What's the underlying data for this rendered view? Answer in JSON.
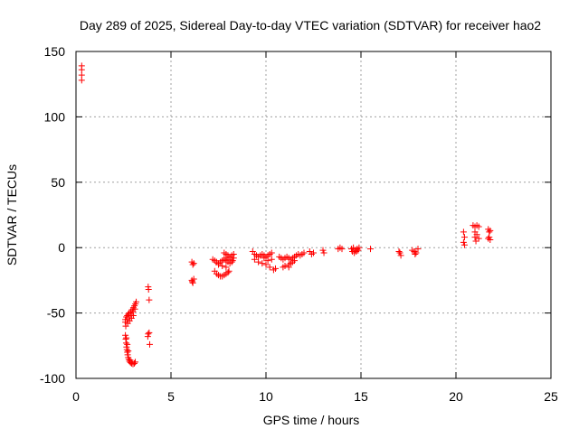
{
  "chart_data": {
    "type": "scatter",
    "title": "Day 289 of 2025, Sidereal Day-to-day VTEC variation (SDTVAR) for receiver hao2",
    "xlabel": "GPS time / hours",
    "ylabel": "SDTVAR / TECUs",
    "xlim": [
      0,
      25
    ],
    "ylim": [
      -100,
      150
    ],
    "xticks": [
      0,
      5,
      10,
      15,
      20,
      25
    ],
    "yticks": [
      -100,
      -50,
      0,
      50,
      100,
      150
    ],
    "xtick_labels": [
      "0",
      "5",
      "10",
      "15",
      "20",
      "25"
    ],
    "ytick_labels": [
      "-100",
      "-50",
      "0",
      "50",
      "100",
      "150"
    ],
    "grid": true,
    "marker": "+",
    "marker_color": "#ff0000",
    "series": [
      {
        "name": "SDTVAR",
        "points": [
          [
            0.3,
            139
          ],
          [
            0.3,
            136
          ],
          [
            0.3,
            132
          ],
          [
            0.3,
            128
          ],
          [
            2.6,
            -67
          ],
          [
            2.62,
            -70
          ],
          [
            2.64,
            -73
          ],
          [
            2.66,
            -76
          ],
          [
            2.68,
            -78
          ],
          [
            2.7,
            -80
          ],
          [
            2.72,
            -82
          ],
          [
            2.75,
            -84
          ],
          [
            2.78,
            -85.5
          ],
          [
            2.82,
            -87
          ],
          [
            2.87,
            -88
          ],
          [
            2.93,
            -88.5
          ],
          [
            3.0,
            -89
          ],
          [
            3.07,
            -88.5
          ],
          [
            3.12,
            -87.5
          ],
          [
            2.65,
            -69
          ],
          [
            2.7,
            -74
          ],
          [
            2.75,
            -79
          ],
          [
            2.85,
            -86
          ],
          [
            2.6,
            -55
          ],
          [
            2.65,
            -53
          ],
          [
            2.7,
            -52
          ],
          [
            2.75,
            -51
          ],
          [
            2.8,
            -50
          ],
          [
            2.88,
            -49
          ],
          [
            2.95,
            -47.5
          ],
          [
            3.02,
            -46
          ],
          [
            3.08,
            -44.5
          ],
          [
            3.13,
            -43
          ],
          [
            3.17,
            -41.5
          ],
          [
            2.6,
            -57
          ],
          [
            2.7,
            -55
          ],
          [
            2.8,
            -53
          ],
          [
            2.9,
            -51
          ],
          [
            3.0,
            -49
          ],
          [
            3.1,
            -47
          ],
          [
            2.62,
            -60
          ],
          [
            2.72,
            -58
          ],
          [
            2.82,
            -56
          ],
          [
            2.92,
            -54
          ],
          [
            3.02,
            -52
          ],
          [
            3.8,
            -30
          ],
          [
            3.82,
            -32
          ],
          [
            3.85,
            -40
          ],
          [
            3.8,
            -66
          ],
          [
            3.85,
            -65
          ],
          [
            3.78,
            -68
          ],
          [
            3.88,
            -74
          ],
          [
            6.1,
            -11
          ],
          [
            6.15,
            -13
          ],
          [
            6.2,
            -12
          ],
          [
            6.1,
            -25
          ],
          [
            6.15,
            -27
          ],
          [
            6.2,
            -24
          ],
          [
            6.12,
            -26
          ],
          [
            7.2,
            -9
          ],
          [
            7.3,
            -10
          ],
          [
            7.4,
            -11
          ],
          [
            7.5,
            -12
          ],
          [
            7.6,
            -11
          ],
          [
            7.7,
            -10
          ],
          [
            7.8,
            -9
          ],
          [
            7.9,
            -10
          ],
          [
            8.0,
            -11
          ],
          [
            8.1,
            -12
          ],
          [
            8.2,
            -11
          ],
          [
            7.3,
            -18
          ],
          [
            7.4,
            -20
          ],
          [
            7.5,
            -21
          ],
          [
            7.6,
            -22
          ],
          [
            7.7,
            -22
          ],
          [
            7.8,
            -21
          ],
          [
            7.9,
            -20
          ],
          [
            8.0,
            -19
          ],
          [
            8.05,
            -18
          ],
          [
            7.8,
            -4
          ],
          [
            7.9,
            -5
          ],
          [
            8.0,
            -6
          ],
          [
            8.1,
            -7
          ],
          [
            8.2,
            -6
          ],
          [
            8.3,
            -5
          ],
          [
            7.9,
            -8
          ],
          [
            8.1,
            -9
          ],
          [
            8.25,
            -10
          ],
          [
            8.3,
            -8
          ],
          [
            7.5,
            -13
          ],
          [
            7.7,
            -14
          ],
          [
            7.9,
            -15
          ],
          [
            9.3,
            -3
          ],
          [
            9.4,
            -5
          ],
          [
            9.5,
            -6
          ],
          [
            9.6,
            -7
          ],
          [
            9.7,
            -6
          ],
          [
            9.8,
            -5
          ],
          [
            9.9,
            -6
          ],
          [
            10.0,
            -7
          ],
          [
            10.1,
            -6
          ],
          [
            10.2,
            -5
          ],
          [
            10.3,
            -4
          ],
          [
            9.4,
            -9
          ],
          [
            9.6,
            -11
          ],
          [
            9.8,
            -12
          ],
          [
            10.0,
            -13
          ],
          [
            10.2,
            -15
          ],
          [
            10.4,
            -17
          ],
          [
            10.5,
            -16
          ],
          [
            9.9,
            -8
          ],
          [
            10.1,
            -10
          ],
          [
            10.3,
            -9
          ],
          [
            10.7,
            -7
          ],
          [
            10.8,
            -8
          ],
          [
            10.9,
            -9
          ],
          [
            11.0,
            -8
          ],
          [
            11.1,
            -7
          ],
          [
            11.2,
            -8
          ],
          [
            11.3,
            -9
          ],
          [
            11.4,
            -8
          ],
          [
            11.5,
            -7
          ],
          [
            11.6,
            -6
          ],
          [
            11.7,
            -5
          ],
          [
            11.8,
            -6
          ],
          [
            11.9,
            -5
          ],
          [
            12.0,
            -4
          ],
          [
            10.9,
            -15
          ],
          [
            11.0,
            -14
          ],
          [
            11.2,
            -13
          ],
          [
            11.3,
            -12
          ],
          [
            11.4,
            -11
          ],
          [
            11.5,
            -10
          ],
          [
            11.2,
            -15
          ],
          [
            12.3,
            -3
          ],
          [
            12.4,
            -5
          ],
          [
            12.5,
            -4
          ],
          [
            13.0,
            -2
          ],
          [
            13.05,
            -4
          ],
          [
            13.8,
            -1
          ],
          [
            13.9,
            0
          ],
          [
            14.0,
            -1
          ],
          [
            14.5,
            -1
          ],
          [
            14.6,
            0
          ],
          [
            14.7,
            -2
          ],
          [
            14.8,
            -1
          ],
          [
            14.9,
            0
          ],
          [
            14.55,
            -3
          ],
          [
            14.65,
            -4
          ],
          [
            14.75,
            -3
          ],
          [
            14.85,
            -2
          ],
          [
            15.5,
            -1
          ],
          [
            17.0,
            -3
          ],
          [
            17.05,
            -4
          ],
          [
            17.1,
            -6
          ],
          [
            17.7,
            -2
          ],
          [
            17.8,
            -3
          ],
          [
            17.9,
            -4
          ],
          [
            18.0,
            -1
          ],
          [
            17.85,
            -5
          ],
          [
            20.4,
            12
          ],
          [
            20.45,
            8
          ],
          [
            20.4,
            4
          ],
          [
            20.45,
            2
          ],
          [
            20.9,
            17
          ],
          [
            21.0,
            16
          ],
          [
            21.1,
            17
          ],
          [
            21.2,
            16
          ],
          [
            21.0,
            12
          ],
          [
            21.1,
            10
          ],
          [
            21.0,
            8
          ],
          [
            21.2,
            7
          ],
          [
            21.05,
            5
          ],
          [
            21.7,
            14
          ],
          [
            21.75,
            12
          ],
          [
            21.8,
            13
          ],
          [
            21.75,
            8
          ],
          [
            21.8,
            6
          ],
          [
            21.7,
            7
          ]
        ]
      }
    ]
  }
}
